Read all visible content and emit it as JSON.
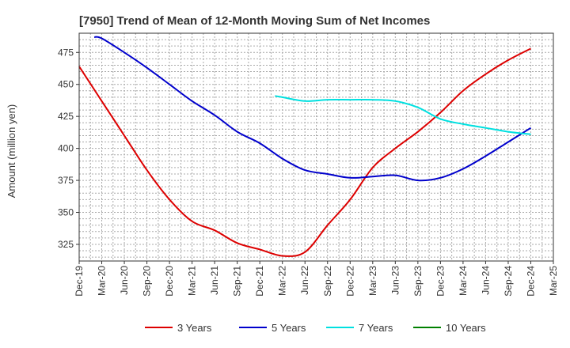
{
  "chart_data": {
    "type": "line",
    "title": "[7950]  Trend of Mean of 12-Month Moving Sum of Net Incomes",
    "ylabel": "Amount (million yen)",
    "xlabel": "",
    "x_ticks": [
      "Dec-19",
      "Mar-20",
      "Jun-20",
      "Sep-20",
      "Dec-20",
      "Mar-21",
      "Jun-21",
      "Sep-21",
      "Dec-21",
      "Mar-22",
      "Jun-22",
      "Sep-22",
      "Dec-22",
      "Mar-23",
      "Jun-23",
      "Sep-23",
      "Dec-23",
      "Mar-24",
      "Jun-24",
      "Sep-24",
      "Dec-24",
      "Mar-25"
    ],
    "y_ticks": [
      325,
      350,
      375,
      400,
      425,
      450,
      475
    ],
    "ylim": [
      312,
      490
    ],
    "grid": true,
    "legend_position": "bottom",
    "series": [
      {
        "name": "3 Years",
        "color": "#dd0000",
        "points": [
          [
            0,
            464
          ],
          [
            1,
            437
          ],
          [
            2,
            410
          ],
          [
            3,
            383
          ],
          [
            4,
            360
          ],
          [
            5,
            343
          ],
          [
            6,
            336
          ],
          [
            7,
            326
          ],
          [
            8,
            321
          ],
          [
            9,
            316
          ],
          [
            10,
            319
          ],
          [
            11,
            340
          ],
          [
            12,
            360
          ],
          [
            13,
            385
          ],
          [
            14,
            400
          ],
          [
            15,
            413
          ],
          [
            16,
            428
          ],
          [
            17,
            445
          ],
          [
            18,
            458
          ],
          [
            19,
            469
          ],
          [
            20,
            478
          ]
        ]
      },
      {
        "name": "5 Years",
        "color": "#0000cc",
        "points": [
          [
            0.67,
            487
          ],
          [
            1,
            486
          ],
          [
            2,
            475
          ],
          [
            3,
            463
          ],
          [
            4,
            450
          ],
          [
            5,
            437
          ],
          [
            6,
            426
          ],
          [
            7,
            413
          ],
          [
            8,
            404
          ],
          [
            9,
            392
          ],
          [
            10,
            383
          ],
          [
            11,
            380
          ],
          [
            12,
            377
          ],
          [
            13,
            378
          ],
          [
            14,
            379
          ],
          [
            15,
            375
          ],
          [
            16,
            377
          ],
          [
            17,
            384
          ],
          [
            18,
            394
          ],
          [
            19,
            405
          ],
          [
            20,
            416
          ]
        ]
      },
      {
        "name": "7 Years",
        "color": "#00e0e0",
        "points": [
          [
            8.67,
            441
          ],
          [
            9,
            440
          ],
          [
            10,
            437
          ],
          [
            11,
            438
          ],
          [
            12,
            438
          ],
          [
            13,
            438
          ],
          [
            14,
            437
          ],
          [
            15,
            432
          ],
          [
            16,
            423
          ],
          [
            17,
            419
          ],
          [
            18,
            416
          ],
          [
            19,
            413
          ],
          [
            20,
            411
          ]
        ]
      },
      {
        "name": "10 Years",
        "color": "#008000",
        "points": []
      }
    ]
  }
}
